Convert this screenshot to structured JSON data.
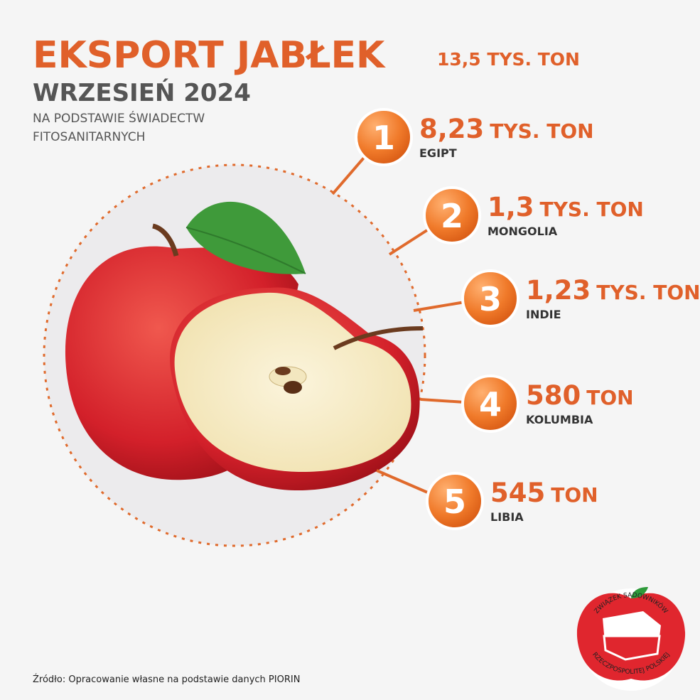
{
  "header": {
    "title": "EKSPORT JABŁEK",
    "total": "13,5 TYS. TON",
    "subtitle": "WRZESIEŃ 2024",
    "note": [
      "NA PODSTAWIE ŚWIADECTW",
      "FITOSANITARNYCH"
    ]
  },
  "items": [
    {
      "rank": "1",
      "value": "8,23",
      "unit": "TYS. TON",
      "country": "EGIPT"
    },
    {
      "rank": "2",
      "value": "1,3",
      "unit": "TYS. TON",
      "country": "MONGOLIA"
    },
    {
      "rank": "3",
      "value": "1,23",
      "unit": "TYS. TON",
      "country": "INDIE"
    },
    {
      "rank": "4",
      "value": "580",
      "unit": "TON",
      "country": "KOLUMBIA"
    },
    {
      "rank": "5",
      "value": "545",
      "unit": "TON",
      "country": "LIBIA"
    }
  ],
  "source": "Źródło: Opracowanie własne na podstawie danych PIORIN",
  "logo": {
    "top": "ZWIĄZEK SADOWNIKÓW",
    "bottom": "RZECZPOSPOLITEJ POLSKIEJ"
  }
}
